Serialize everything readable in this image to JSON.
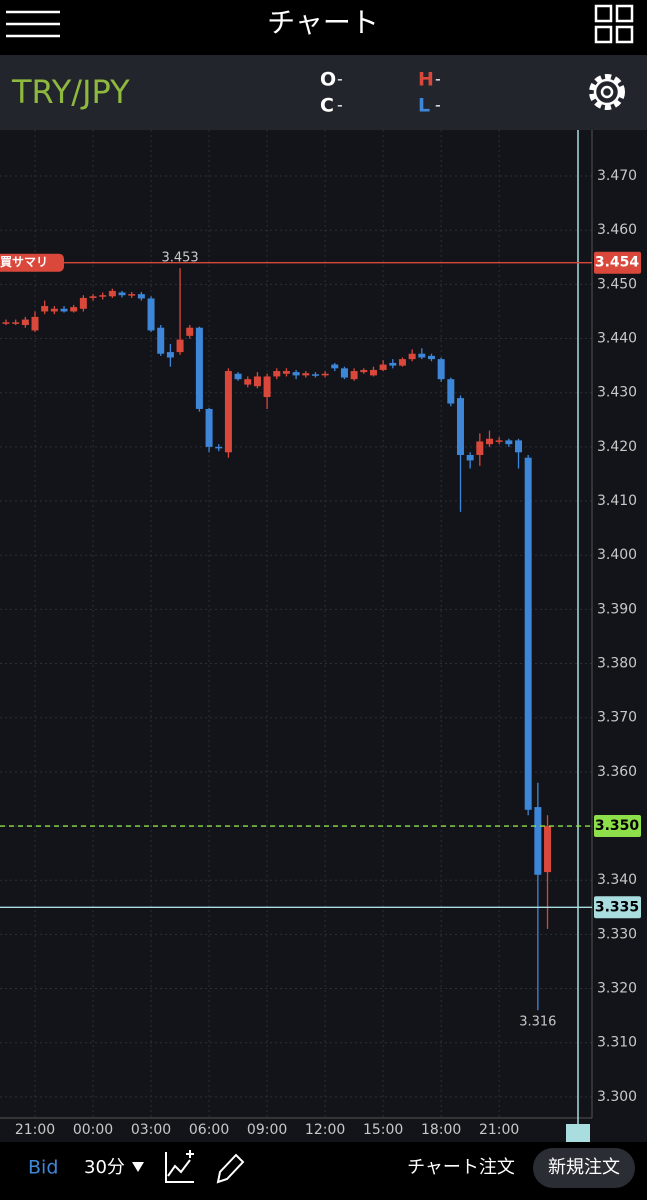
{
  "header": {
    "title": "チャート"
  },
  "symbol": "TRY/JPY",
  "ohlc_legend": [
    {
      "label": "O",
      "value": "-"
    },
    {
      "label": "C",
      "value": "-"
    },
    {
      "label": "H",
      "value": "-"
    },
    {
      "label": "L",
      "value": "-"
    }
  ],
  "chart_data": {
    "type": "candlestick",
    "categories": [
      null,
      null,
      null,
      "21:00",
      null,
      null,
      null,
      null,
      null,
      "00:00",
      null,
      null,
      null,
      null,
      null,
      "03:00",
      null,
      null,
      null,
      null,
      null,
      "06:00",
      null,
      null,
      null,
      null,
      null,
      "09:00",
      null,
      null,
      null,
      null,
      null,
      "12:00",
      null,
      null,
      null,
      null,
      null,
      "15:00",
      null,
      null,
      null,
      null,
      null,
      "18:00",
      null,
      null,
      null,
      null,
      null,
      "21:00",
      null,
      null,
      null,
      null,
      null
    ],
    "open": [
      3.443,
      3.443,
      3.4425,
      3.4415,
      3.445,
      3.445,
      3.4455,
      3.445,
      3.4455,
      3.4475,
      3.4478,
      3.4478,
      3.4485,
      3.448,
      3.4482,
      3.4474,
      3.442,
      3.4375,
      3.4375,
      3.4405,
      3.442,
      3.427,
      3.42,
      3.419,
      3.4335,
      3.4315,
      3.4312,
      3.4292,
      3.433,
      3.4335,
      3.4338,
      3.4332,
      3.4334,
      3.4332,
      3.4352,
      3.4345,
      3.4325,
      3.4338,
      3.4332,
      3.4342,
      3.4355,
      3.435,
      3.4362,
      3.4372,
      3.4368,
      3.4362,
      3.4325,
      3.429,
      3.4185,
      3.4185,
      3.4205,
      3.421,
      3.4212,
      3.4212,
      3.418,
      3.3535,
      3.3415
    ],
    "high": [
      3.4435,
      3.4435,
      3.444,
      3.445,
      3.447,
      3.446,
      3.446,
      3.4462,
      3.448,
      3.4482,
      3.4485,
      3.4492,
      3.4488,
      3.4486,
      3.4486,
      3.4478,
      3.4425,
      3.439,
      3.453,
      3.4425,
      3.4422,
      3.4272,
      3.4205,
      3.4345,
      3.4338,
      3.433,
      3.4338,
      3.4335,
      3.4345,
      3.4345,
      3.4342,
      3.434,
      3.4338,
      3.434,
      3.4355,
      3.4348,
      3.4345,
      3.4345,
      3.4348,
      3.436,
      3.4362,
      3.4365,
      3.438,
      3.4382,
      3.4372,
      3.4365,
      3.4328,
      3.4295,
      3.419,
      3.4225,
      3.423,
      3.4218,
      3.4215,
      3.4215,
      3.4185,
      3.358,
      3.352
    ],
    "low": [
      3.4425,
      3.4425,
      3.442,
      3.4412,
      3.4445,
      3.4445,
      3.4448,
      3.4448,
      3.445,
      3.447,
      3.4472,
      3.4475,
      3.4476,
      3.4475,
      3.447,
      3.4412,
      3.4368,
      3.4348,
      3.437,
      3.44,
      3.4265,
      3.419,
      3.4192,
      3.418,
      3.4322,
      3.431,
      3.4308,
      3.427,
      3.4325,
      3.433,
      3.4325,
      3.4328,
      3.4328,
      3.4328,
      3.434,
      3.4325,
      3.4322,
      3.4335,
      3.433,
      3.434,
      3.4345,
      3.4348,
      3.4358,
      3.4362,
      3.4358,
      3.432,
      3.4275,
      3.408,
      3.416,
      3.4165,
      3.42,
      3.4205,
      3.42,
      3.416,
      3.352,
      3.316,
      3.331
    ],
    "close": [
      3.443,
      3.443,
      3.4435,
      3.444,
      3.446,
      3.4455,
      3.445,
      3.4458,
      3.4475,
      3.4478,
      3.448,
      3.4488,
      3.448,
      3.4482,
      3.4474,
      3.4415,
      3.4372,
      3.4365,
      3.4398,
      3.442,
      3.427,
      3.42,
      3.4198,
      3.434,
      3.4325,
      3.4325,
      3.433,
      3.433,
      3.434,
      3.434,
      3.4332,
      3.4336,
      3.4332,
      3.4335,
      3.4345,
      3.4328,
      3.434,
      3.4342,
      3.4342,
      3.4352,
      3.435,
      3.4362,
      3.4372,
      3.4365,
      3.4362,
      3.4325,
      3.428,
      3.4185,
      3.4175,
      3.421,
      3.4215,
      3.4212,
      3.4205,
      3.419,
      3.353,
      3.341,
      3.35
    ],
    "up_color": "#d9483b",
    "down_color": "#3e86d8",
    "ylim": [
      3.2961,
      3.4785
    ],
    "yticks": [
      {
        "value": 3.3,
        "label": "3.300"
      },
      {
        "value": 3.31,
        "label": "3.310"
      },
      {
        "value": 3.32,
        "label": "3.320"
      },
      {
        "value": 3.33,
        "label": "3.330"
      },
      {
        "value": 3.34,
        "label": "3.340"
      },
      {
        "value": 3.35,
        "label": "3.350"
      },
      {
        "value": 3.36,
        "label": "3.360"
      },
      {
        "value": 3.37,
        "label": "3.370"
      },
      {
        "value": 3.38,
        "label": "3.380"
      },
      {
        "value": 3.39,
        "label": "3.390"
      },
      {
        "value": 3.4,
        "label": "3.400"
      },
      {
        "value": 3.41,
        "label": "3.410"
      },
      {
        "value": 3.42,
        "label": "3.420"
      },
      {
        "value": 3.43,
        "label": "3.430"
      },
      {
        "value": 3.44,
        "label": "3.440"
      },
      {
        "value": 3.45,
        "label": "3.450"
      },
      {
        "value": 3.46,
        "label": "3.460"
      },
      {
        "value": 3.47,
        "label": "3.470"
      }
    ],
    "grid": true,
    "price_lines": [
      {
        "name": "買サマリ",
        "value": 3.454,
        "label": "3.454",
        "color": "#d9483b",
        "style": "solid"
      },
      {
        "value": 3.35,
        "label": "3.350",
        "color": "#8ee04a",
        "style": "dashed"
      },
      {
        "value": 3.335,
        "label": "3.335",
        "color": "#a9dde0",
        "style": "solid"
      }
    ],
    "annotations": [
      {
        "value": 3.453,
        "label": "3.453"
      },
      {
        "value": 3.316,
        "label": "3.316"
      }
    ]
  },
  "footer": {
    "price_type": "Bid",
    "interval": "30分",
    "order_chart": "チャート注文",
    "order_new": "新規注文"
  }
}
